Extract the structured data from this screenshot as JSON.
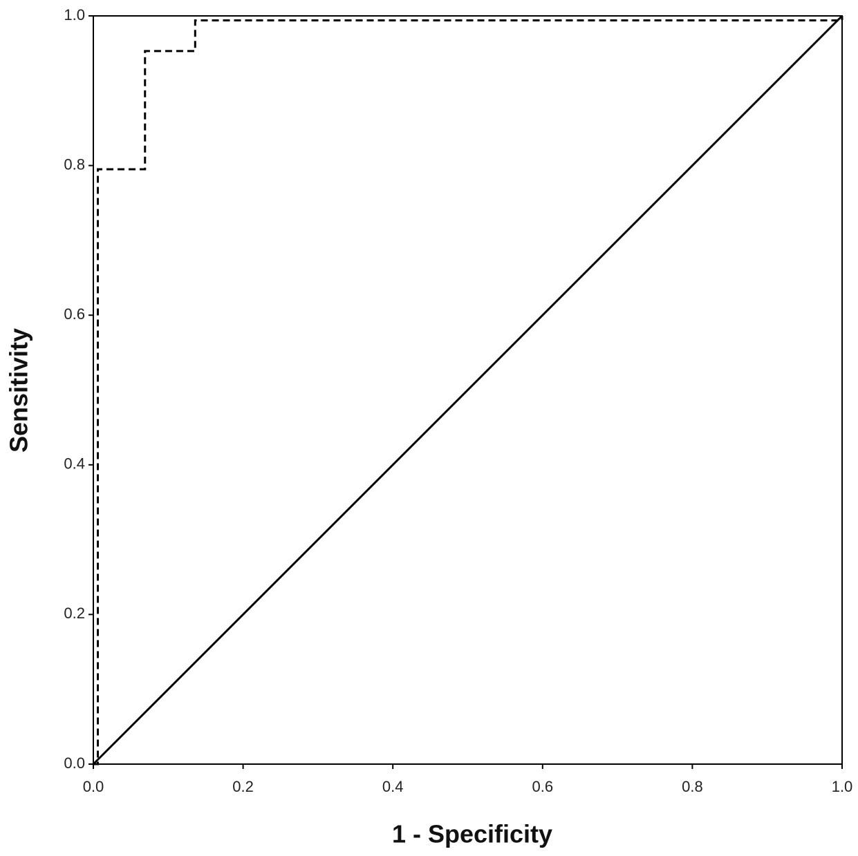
{
  "chart_data": {
    "type": "line",
    "x_label": "1 - Specificity",
    "y_label": "Sensitivity",
    "series": [
      {
        "color": "#000000",
        "dashed": true,
        "x": [
          0,
          0.006,
          0.006,
          0.069,
          0.069,
          0.136,
          0.136,
          1.0,
          1.0
        ],
        "values": [
          0,
          0,
          0.795,
          0.795,
          0.953,
          0.953,
          0.994,
          0.994,
          1.0
        ]
      },
      {
        "color": "#000000",
        "dashed": false,
        "x": [
          0,
          1.0
        ],
        "values": [
          0,
          1.0
        ]
      }
    ],
    "xlim": [
      0,
      1.0
    ],
    "ylim": [
      0,
      1.0
    ],
    "xticks": [
      {
        "value": 0,
        "label": "0.0"
      },
      0.2,
      0.4,
      0.6,
      0.8,
      {
        "value": 1.0,
        "label": "1.0"
      }
    ],
    "yticks": [
      {
        "value": 0,
        "label": "0.0"
      },
      0.2,
      0.4,
      0.6,
      0.8,
      {
        "value": 1.0,
        "label": "1.0"
      }
    ],
    "grid": false
  }
}
